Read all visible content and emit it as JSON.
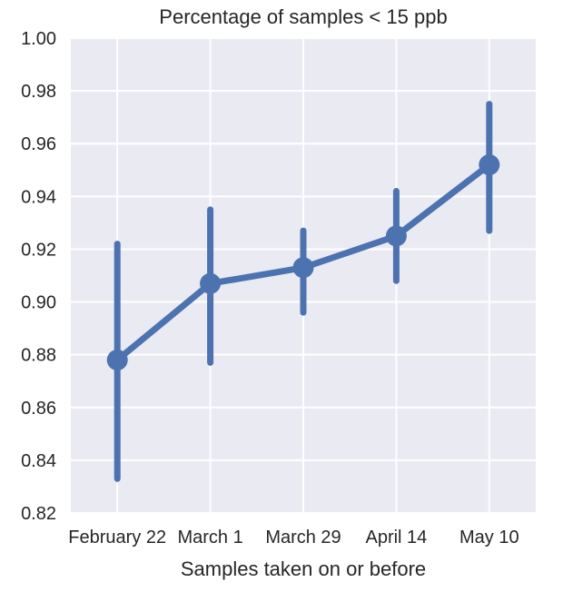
{
  "chart_data": {
    "type": "line",
    "subtype": "pointplot-with-error-bars",
    "title": "Percentage of samples < 15 ppb",
    "xlabel": "Samples taken on or before",
    "ylabel": "",
    "categories": [
      "February 22",
      "March 1",
      "March 29",
      "April 14",
      "May 10"
    ],
    "series": [
      {
        "name": "Percentage of samples < 15 ppb",
        "values": [
          0.878,
          0.907,
          0.913,
          0.925,
          0.952
        ],
        "ci_low": [
          0.833,
          0.877,
          0.896,
          0.908,
          0.927
        ],
        "ci_high": [
          0.922,
          0.935,
          0.927,
          0.942,
          0.975
        ],
        "color": "#4c72b0"
      }
    ],
    "ylim": [
      0.82,
      1.0
    ],
    "yticks": [
      "0.82",
      "0.84",
      "0.86",
      "0.88",
      "0.90",
      "0.92",
      "0.94",
      "0.96",
      "0.98",
      "1.00"
    ],
    "grid": true,
    "legend": null,
    "style": {
      "background": "#eaeaf2",
      "grid_color": "#ffffff"
    }
  }
}
